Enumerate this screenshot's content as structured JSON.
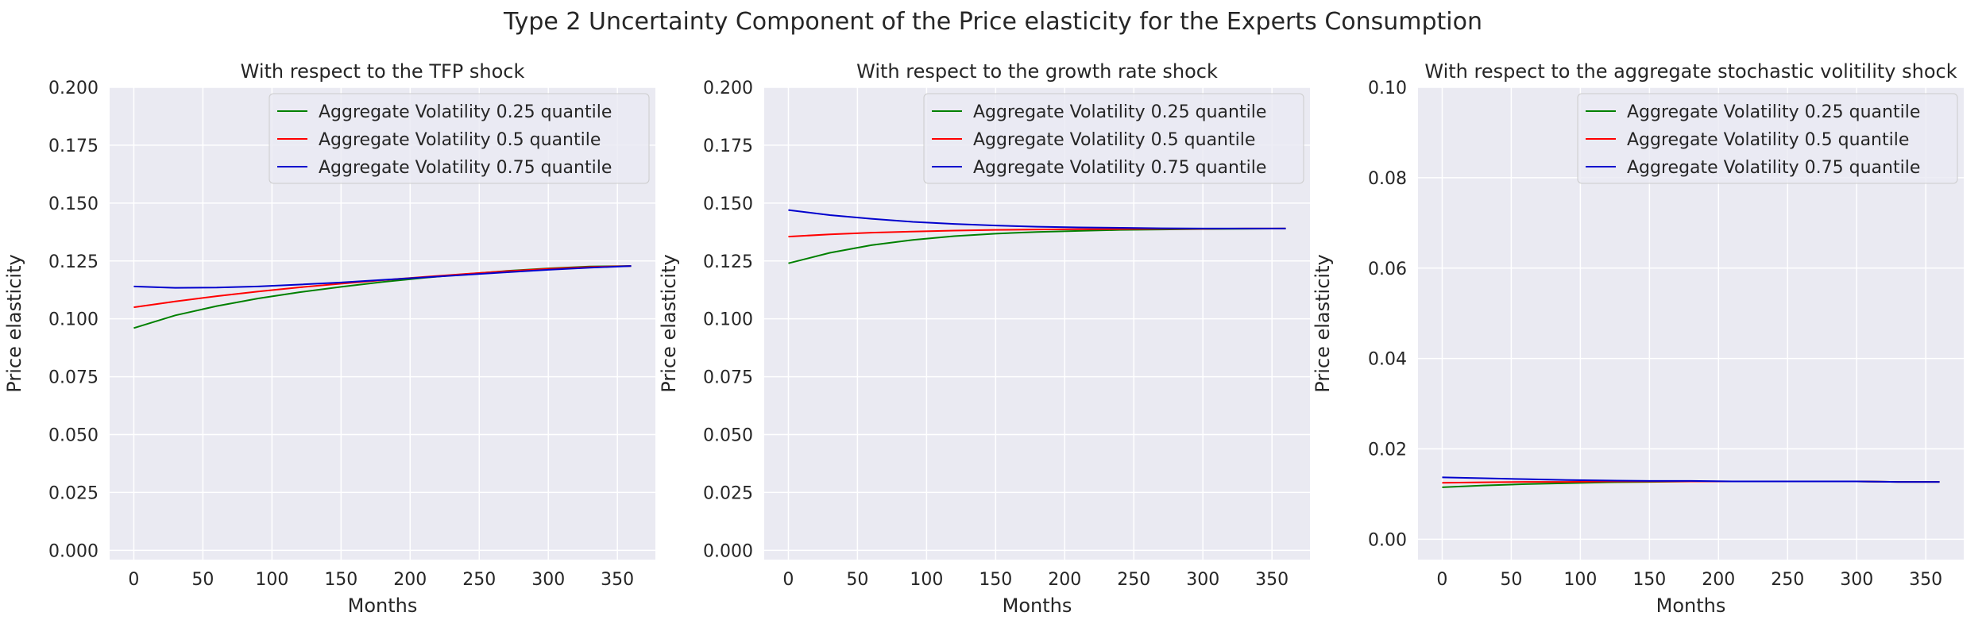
{
  "figure": {
    "title": "Type 2 Uncertainty Component of the Price elasticity for the Experts Consumption"
  },
  "chart_data": [
    {
      "type": "line",
      "title": "With respect to the TFP shock",
      "xlabel": "Months",
      "ylabel": "Price elasticity",
      "xlim": [
        -17.5,
        377.5
      ],
      "ylim": [
        -0.004,
        0.2
      ],
      "xticks": [
        0,
        50,
        100,
        150,
        200,
        250,
        300,
        350
      ],
      "yticks": [
        0.0,
        0.025,
        0.05,
        0.075,
        0.1,
        0.125,
        0.15,
        0.175,
        0.2
      ],
      "ytick_labels": [
        "0.000",
        "0.025",
        "0.050",
        "0.075",
        "0.100",
        "0.125",
        "0.150",
        "0.175",
        "0.200"
      ],
      "grid": true,
      "legend_position": "upper right",
      "x": [
        0,
        30,
        60,
        90,
        120,
        150,
        180,
        210,
        240,
        270,
        300,
        330,
        360
      ],
      "series": [
        {
          "name": "Aggregate Volatility 0.25 quantile",
          "color": "#008000",
          "values": [
            0.096,
            0.1015,
            0.1055,
            0.1088,
            0.1115,
            0.1138,
            0.1159,
            0.1177,
            0.1193,
            0.1207,
            0.1218,
            0.1226,
            0.1228
          ]
        },
        {
          "name": "Aggregate Volatility 0.5 quantile",
          "color": "#ff0000",
          "values": [
            0.105,
            0.1075,
            0.1098,
            0.1118,
            0.1136,
            0.1152,
            0.1167,
            0.1181,
            0.1194,
            0.1206,
            0.1216,
            0.1224,
            0.1228
          ]
        },
        {
          "name": "Aggregate Volatility 0.75 quantile",
          "color": "#0000cd",
          "values": [
            0.114,
            0.1134,
            0.1135,
            0.114,
            0.1148,
            0.1157,
            0.1168,
            0.1179,
            0.119,
            0.1201,
            0.1212,
            0.1221,
            0.1228
          ]
        }
      ]
    },
    {
      "type": "line",
      "title": "With respect to the growth rate shock",
      "xlabel": "Months",
      "ylabel": "Price elasticity",
      "xlim": [
        -17.5,
        377.5
      ],
      "ylim": [
        -0.004,
        0.2
      ],
      "xticks": [
        0,
        50,
        100,
        150,
        200,
        250,
        300,
        350
      ],
      "yticks": [
        0.0,
        0.025,
        0.05,
        0.075,
        0.1,
        0.125,
        0.15,
        0.175,
        0.2
      ],
      "ytick_labels": [
        "0.000",
        "0.025",
        "0.050",
        "0.075",
        "0.100",
        "0.125",
        "0.150",
        "0.175",
        "0.200"
      ],
      "grid": true,
      "legend_position": "upper right",
      "x": [
        0,
        30,
        60,
        90,
        120,
        150,
        180,
        210,
        240,
        270,
        300,
        330,
        360
      ],
      "series": [
        {
          "name": "Aggregate Volatility 0.25 quantile",
          "color": "#008000",
          "values": [
            0.124,
            0.1285,
            0.1318,
            0.1341,
            0.1357,
            0.1368,
            0.1375,
            0.138,
            0.1384,
            0.1386,
            0.1388,
            0.1389,
            0.139
          ]
        },
        {
          "name": "Aggregate Volatility 0.5 quantile",
          "color": "#ff0000",
          "values": [
            0.1355,
            0.1365,
            0.1372,
            0.1377,
            0.1381,
            0.1384,
            0.1386,
            0.1387,
            0.1388,
            0.1389,
            0.1389,
            0.139,
            0.139
          ]
        },
        {
          "name": "Aggregate Volatility 0.75 quantile",
          "color": "#0000cd",
          "values": [
            0.147,
            0.1448,
            0.1432,
            0.1419,
            0.141,
            0.1403,
            0.1398,
            0.1395,
            0.1393,
            0.1391,
            0.139,
            0.139,
            0.139
          ]
        }
      ]
    },
    {
      "type": "line",
      "title": "With respect to the aggregate stochastic volitility shock",
      "xlabel": "Months",
      "ylabel": "Price elasticity",
      "xlim": [
        -17.5,
        377.5
      ],
      "ylim": [
        -0.0045,
        0.1
      ],
      "xticks": [
        0,
        50,
        100,
        150,
        200,
        250,
        300,
        350
      ],
      "yticks": [
        0.0,
        0.02,
        0.04,
        0.06,
        0.08,
        0.1
      ],
      "ytick_labels": [
        "0.00",
        "0.02",
        "0.04",
        "0.06",
        "0.08",
        "0.10"
      ],
      "grid": true,
      "legend_position": "upper right",
      "x": [
        0,
        30,
        60,
        90,
        120,
        150,
        180,
        210,
        240,
        270,
        300,
        330,
        360
      ],
      "series": [
        {
          "name": "Aggregate Volatility 0.25 quantile",
          "color": "#008000",
          "values": [
            0.0115,
            0.0119,
            0.0122,
            0.0124,
            0.0126,
            0.0127,
            0.0128,
            0.0128,
            0.0128,
            0.0128,
            0.0128,
            0.0127,
            0.0127
          ]
        },
        {
          "name": "Aggregate Volatility 0.5 quantile",
          "color": "#ff0000",
          "values": [
            0.0125,
            0.0126,
            0.0127,
            0.0127,
            0.0128,
            0.0128,
            0.0128,
            0.0128,
            0.0128,
            0.0128,
            0.0128,
            0.0127,
            0.0127
          ]
        },
        {
          "name": "Aggregate Volatility 0.75 quantile",
          "color": "#0000cd",
          "values": [
            0.0137,
            0.0135,
            0.0133,
            0.0131,
            0.013,
            0.0129,
            0.0129,
            0.0128,
            0.0128,
            0.0128,
            0.0128,
            0.0127,
            0.0127
          ]
        }
      ]
    }
  ]
}
